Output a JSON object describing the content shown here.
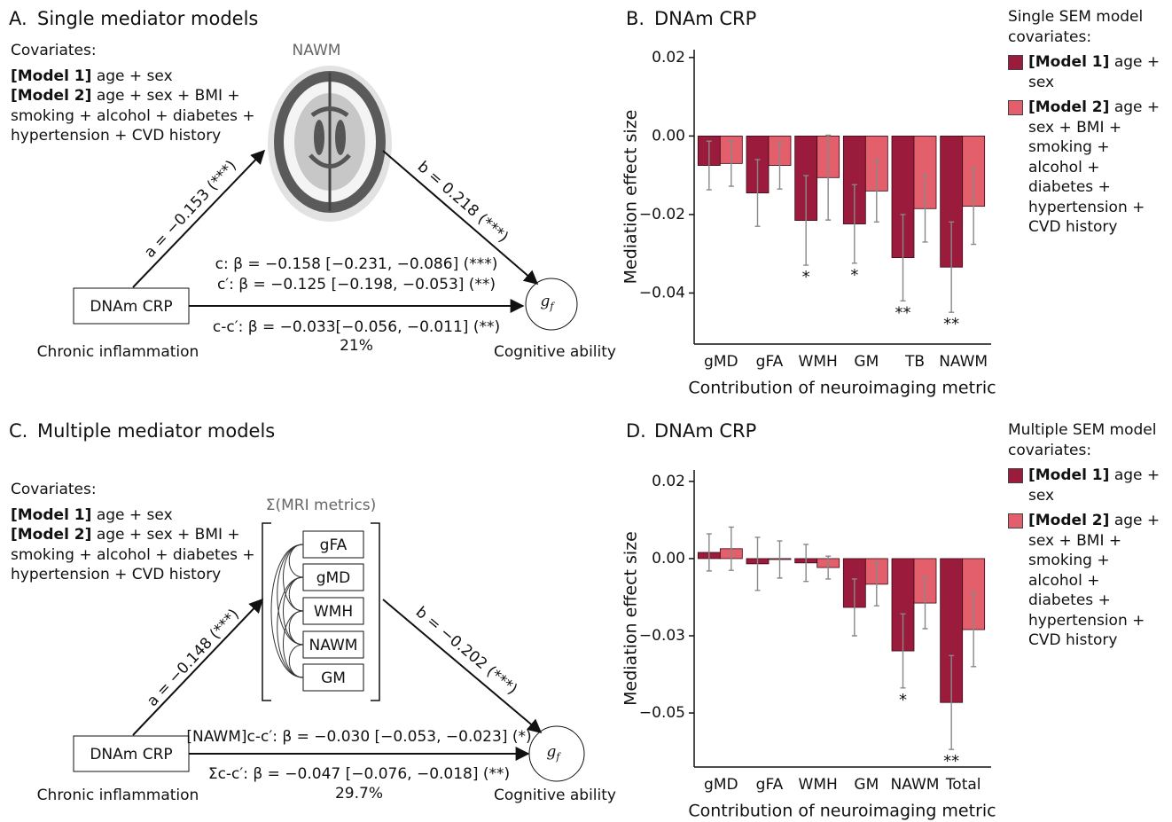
{
  "panel_a": {
    "label": "A.",
    "title": "Single mediator models",
    "covariates_heading": "Covariates:",
    "model1_label": "[Model 1]",
    "model1_text": "age + sex",
    "model2_label": "[Model 2]",
    "model2_text": "age + sex + BMI + smoking + alcohol + diabetes + hypertension + CVD history",
    "mediator": "NAWM",
    "exposure": "DNAm CRP",
    "exposure_caption": "Chronic inflammation",
    "outcome": "g",
    "outcome_sub": "f",
    "outcome_caption": "Cognitive ability",
    "path_a": "a = −0.153 (***)",
    "path_b": "b = 0.218 (***)",
    "path_c": "c: β = −0.158 [−0.231, −0.086] (***)",
    "path_c_prime": "c′: β = −0.125 [−0.198, −0.053] (**)",
    "path_indirect": "c-c′: β = −0.033[−0.056, −0.011] (**)",
    "proportion": "21%"
  },
  "panel_c": {
    "label": "C.",
    "title": "Multiple mediator models",
    "covariates_heading": "Covariates:",
    "model1_label": "[Model 1]",
    "model1_text": "age + sex",
    "model2_label": "[Model 2]",
    "model2_text": "age + sex + BMI + smoking + alcohol + diabetes + hypertension + CVD history",
    "mediator_heading": "Σ(MRI metrics)",
    "mediators": [
      "gFA",
      "gMD",
      "WMH",
      "NAWM",
      "GM"
    ],
    "exposure": "DNAm CRP",
    "exposure_caption": "Chronic inflammation",
    "outcome": "g",
    "outcome_sub": "f",
    "outcome_caption": "Cognitive ability",
    "path_a": "a = −0.148 (***)",
    "path_b": "b = −0.202 (***)",
    "path_nawm": "[NAWM]c-c′: β = −0.030 [−0.053, −0.023] (*)",
    "path_total": "Σc-c′: β = −0.047 [−0.076, −0.018] (**)",
    "proportion": "29.7%"
  },
  "chart_data": [
    {
      "type": "bar",
      "label": "B.",
      "title": "DNAm CRP",
      "y_label": "Mediation effect size",
      "x_label": "Contribution of neuroimaging metric",
      "categories": [
        "gMD",
        "gFA",
        "WMH",
        "GM",
        "TB",
        "NAWM"
      ],
      "ylim": [
        -0.053,
        0.022
      ],
      "yticks": [
        0.02,
        {
          "value": 0,
          "label": "0.00"
        },
        {
          "value": -0.02,
          "label": "−0.02"
        },
        {
          "value": -0.04,
          "label": "−0.04"
        }
      ],
      "legend": "right",
      "legend_title": "Single SEM model covariates:",
      "series": [
        {
          "name": "[Model 1]",
          "description": "age + sex",
          "color": "#9b1b3c",
          "values": [
            -0.0075,
            -0.0145,
            -0.0215,
            -0.0224,
            -0.031,
            -0.0334
          ],
          "errors": [
            0.0062,
            0.0085,
            0.0114,
            0.01,
            0.011,
            0.0115
          ],
          "significance": [
            null,
            null,
            "*",
            "*",
            "**",
            "**"
          ]
        },
        {
          "name": "[Model 2]",
          "description": "age + sex + BMI + smoking + alcohol + diabetes + hypertension + CVD history",
          "color": "#e35f6c",
          "values": [
            -0.007,
            -0.0075,
            -0.0106,
            -0.014,
            -0.0185,
            -0.0179
          ],
          "errors": [
            0.0058,
            0.006,
            0.0108,
            0.0079,
            0.0085,
            0.0097
          ],
          "significance": [
            null,
            null,
            null,
            null,
            null,
            null
          ]
        }
      ]
    },
    {
      "type": "bar",
      "label": "D.",
      "title": "DNAm CRP",
      "y_label": "Mediation effect size",
      "x_label": "Contribution of neuroimaging metric",
      "categories": [
        "gMD",
        "gFA",
        "WMH",
        "GM",
        "NAWM",
        "Total"
      ],
      "ylim": [
        -0.0675,
        0.0287
      ],
      "yticks": [
        {
          "value": 0.025,
          "label": "0.02"
        },
        {
          "value": 0,
          "label": "0.00"
        },
        {
          "value": -0.025,
          "label": "−0.03"
        },
        {
          "value": -0.05,
          "label": "−0.05"
        }
      ],
      "legend": "right",
      "legend_title": "Multiple SEM model covariates:",
      "series": [
        {
          "name": "[Model 1]",
          "description": "age + sex",
          "color": "#9b1b3c",
          "values": [
            0.002,
            -0.0017,
            -0.0014,
            -0.0158,
            -0.0299,
            -0.0466
          ],
          "errors": [
            0.006,
            0.0086,
            0.006,
            0.0092,
            0.012,
            0.0152
          ],
          "significance": [
            null,
            null,
            null,
            null,
            "*",
            "**"
          ]
        },
        {
          "name": "[Model 2]",
          "description": "age + sex + BMI + smoking + alcohol + diabetes + hypertension + CVD history",
          "color": "#e35f6c",
          "values": [
            0.0032,
            -0.0003,
            -0.0029,
            -0.0083,
            -0.0144,
            -0.023
          ],
          "errors": [
            0.007,
            0.006,
            0.0037,
            0.007,
            0.0083,
            0.012
          ],
          "significance": [
            null,
            null,
            null,
            null,
            null,
            null
          ]
        }
      ]
    }
  ]
}
